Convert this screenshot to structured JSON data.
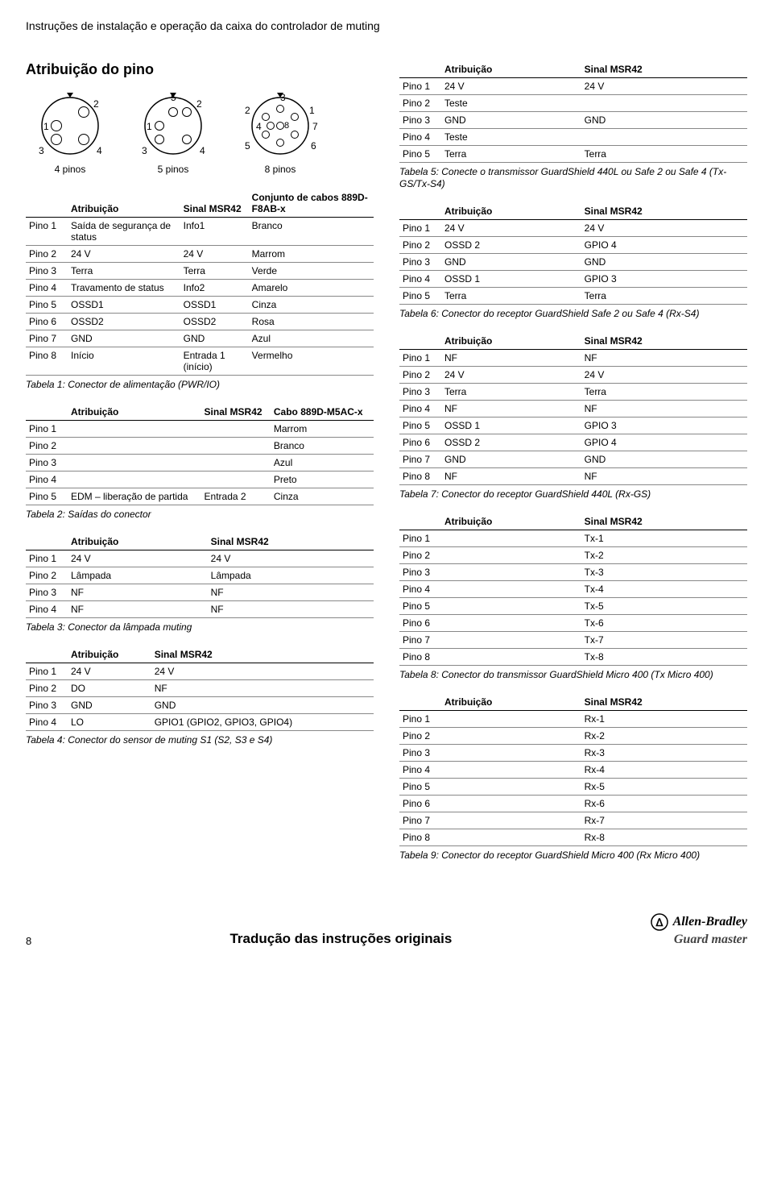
{
  "header": "Instruções de instalação e operação da caixa do controlador de muting",
  "section_title": "Atribuição do pino",
  "connectors": [
    {
      "label": "4 pinos",
      "pins": [
        "1",
        "2",
        "3",
        "4"
      ],
      "type": 4
    },
    {
      "label": "5 pinos",
      "pins": [
        "1",
        "2",
        "3",
        "4",
        "5"
      ],
      "type": 5
    },
    {
      "label": "8 pinos",
      "pins": [
        "1",
        "2",
        "3",
        "4",
        "5",
        "6",
        "7",
        "8"
      ],
      "type": 8
    }
  ],
  "table1": {
    "headers": [
      "",
      "Atribuição",
      "Sinal MSR42",
      "Conjunto de cabos 889D-F8AB-x"
    ],
    "rows": [
      [
        "Pino 1",
        "Saída de segurança de status",
        "Info1",
        "Branco"
      ],
      [
        "Pino 2",
        "24 V",
        "24 V",
        "Marrom"
      ],
      [
        "Pino 3",
        "Terra",
        "Terra",
        "Verde"
      ],
      [
        "Pino 4",
        "Travamento de status",
        "Info2",
        "Amarelo"
      ],
      [
        "Pino 5",
        "OSSD1",
        "OSSD1",
        "Cinza"
      ],
      [
        "Pino 6",
        "OSSD2",
        "OSSD2",
        "Rosa"
      ],
      [
        "Pino 7",
        "GND",
        "GND",
        "Azul"
      ],
      [
        "Pino 8",
        "Início",
        "Entrada 1 (início)",
        "Vermelho"
      ]
    ],
    "caption": "Tabela 1: Conector de alimentação (PWR/IO)"
  },
  "table2": {
    "headers": [
      "",
      "Atribuição",
      "Sinal MSR42",
      "Cabo 889D-M5AC-x"
    ],
    "rows": [
      [
        "Pino 1",
        "",
        "",
        "Marrom"
      ],
      [
        "Pino 2",
        "",
        "",
        "Branco"
      ],
      [
        "Pino 3",
        "",
        "",
        "Azul"
      ],
      [
        "Pino 4",
        "",
        "",
        "Preto"
      ],
      [
        "Pino 5",
        "EDM – liberação de partida",
        "Entrada 2",
        "Cinza"
      ]
    ],
    "caption": "Tabela 2: Saídas do conector"
  },
  "table3": {
    "headers": [
      "",
      "Atribuição",
      "Sinal MSR42"
    ],
    "rows": [
      [
        "Pino 1",
        "24 V",
        "24 V"
      ],
      [
        "Pino 2",
        "Lâmpada",
        "Lâmpada"
      ],
      [
        "Pino 3",
        "NF",
        "NF"
      ],
      [
        "Pino 4",
        "NF",
        "NF"
      ]
    ],
    "caption": "Tabela 3: Conector da lâmpada muting"
  },
  "table4": {
    "headers": [
      "",
      "Atribuição",
      "Sinal MSR42"
    ],
    "rows": [
      [
        "Pino 1",
        "24 V",
        "24 V"
      ],
      [
        "Pino 2",
        "DO",
        "NF"
      ],
      [
        "Pino 3",
        "GND",
        "GND"
      ],
      [
        "Pino 4",
        "LO",
        "GPIO1 (GPIO2, GPIO3, GPIO4)"
      ]
    ],
    "caption": "Tabela 4: Conector do sensor de muting S1 (S2, S3 e S4)"
  },
  "table5": {
    "headers": [
      "",
      "Atribuição",
      "Sinal MSR42"
    ],
    "rows": [
      [
        "Pino 1",
        "24 V",
        "24 V"
      ],
      [
        "Pino 2",
        "Teste",
        ""
      ],
      [
        "Pino 3",
        "GND",
        "GND"
      ],
      [
        "Pino 4",
        "Teste",
        ""
      ],
      [
        "Pino 5",
        "Terra",
        "Terra"
      ]
    ],
    "caption": "Tabela 5: Conecte o transmissor GuardShield 440L ou Safe 2 ou Safe 4 (Tx-GS/Tx-S4)"
  },
  "table6": {
    "headers": [
      "",
      "Atribuição",
      "Sinal MSR42"
    ],
    "rows": [
      [
        "Pino 1",
        "24 V",
        "24 V"
      ],
      [
        "Pino 2",
        "OSSD 2",
        "GPIO 4"
      ],
      [
        "Pino 3",
        "GND",
        "GND"
      ],
      [
        "Pino 4",
        "OSSD 1",
        "GPIO 3"
      ],
      [
        "Pino 5",
        "Terra",
        "Terra"
      ]
    ],
    "caption": "Tabela 6: Conector do receptor GuardShield Safe 2 ou Safe 4 (Rx-S4)"
  },
  "table7": {
    "headers": [
      "",
      "Atribuição",
      "Sinal MSR42"
    ],
    "rows": [
      [
        "Pino 1",
        "NF",
        "NF"
      ],
      [
        "Pino 2",
        "24 V",
        "24 V"
      ],
      [
        "Pino 3",
        "Terra",
        "Terra"
      ],
      [
        "Pino 4",
        "NF",
        "NF"
      ],
      [
        "Pino 5",
        "OSSD 1",
        "GPIO 3"
      ],
      [
        "Pino 6",
        "OSSD 2",
        "GPIO 4"
      ],
      [
        "Pino 7",
        "GND",
        "GND"
      ],
      [
        "Pino 8",
        "NF",
        "NF"
      ]
    ],
    "caption": "Tabela 7: Conector do receptor GuardShield 440L (Rx-GS)"
  },
  "table8": {
    "headers": [
      "",
      "Atribuição",
      "Sinal MSR42"
    ],
    "rows": [
      [
        "Pino 1",
        "",
        "Tx-1"
      ],
      [
        "Pino 2",
        "",
        "Tx-2"
      ],
      [
        "Pino 3",
        "",
        "Tx-3"
      ],
      [
        "Pino 4",
        "",
        "Tx-4"
      ],
      [
        "Pino 5",
        "",
        "Tx-5"
      ],
      [
        "Pino 6",
        "",
        "Tx-6"
      ],
      [
        "Pino 7",
        "",
        "Tx-7"
      ],
      [
        "Pino 8",
        "",
        "Tx-8"
      ]
    ],
    "caption": "Tabela 8: Conector do transmissor GuardShield Micro 400 (Tx Micro 400)"
  },
  "table9": {
    "headers": [
      "",
      "Atribuição",
      "Sinal MSR42"
    ],
    "rows": [
      [
        "Pino 1",
        "",
        "Rx-1"
      ],
      [
        "Pino 2",
        "",
        "Rx-2"
      ],
      [
        "Pino 3",
        "",
        "Rx-3"
      ],
      [
        "Pino 4",
        "",
        "Rx-4"
      ],
      [
        "Pino 5",
        "",
        "Rx-5"
      ],
      [
        "Pino 6",
        "",
        "Rx-6"
      ],
      [
        "Pino 7",
        "",
        "Rx-7"
      ],
      [
        "Pino 8",
        "",
        "Rx-8"
      ]
    ],
    "caption": "Tabela 9: Conector do receptor GuardShield Micro 400 (Rx Micro 400)"
  },
  "footer": {
    "page": "8",
    "center": "Tradução das instruções originais",
    "ab": "Allen-Bradley",
    "gm": "Guard  master"
  }
}
